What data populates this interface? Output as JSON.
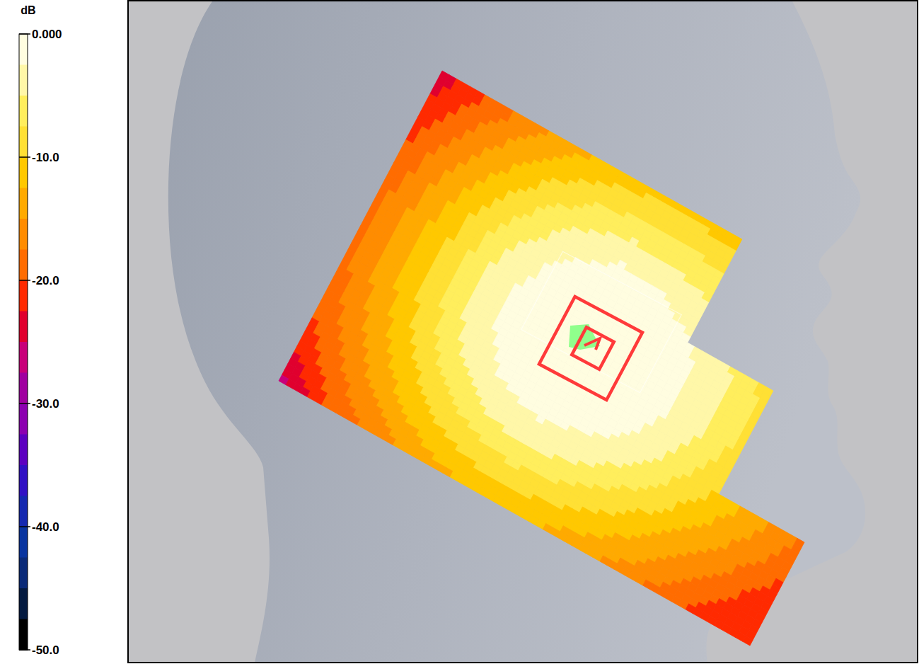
{
  "chart_data": {
    "type": "heatmap",
    "colorbar_title": "dB",
    "colorbar_lim": [
      -50,
      0
    ],
    "colorbar_ticks": [
      {
        "value": 0,
        "label": "0.000"
      },
      {
        "value": -10,
        "label": "-10.0"
      },
      {
        "value": -20,
        "label": "-20.0"
      },
      {
        "value": -30,
        "label": "-30.0"
      },
      {
        "value": -40,
        "label": "-40.0"
      },
      {
        "value": -50,
        "label": "-50.0"
      }
    ],
    "colors": [
      "#fffde0",
      "#fff7a8",
      "#ffee5c",
      "#ffe034",
      "#ffc800",
      "#ffaa00",
      "#ff8c00",
      "#ff6c00",
      "#ff2a00",
      "#e0002e",
      "#c8007a",
      "#a000a0",
      "#8c00b0",
      "#5c00c0",
      "#3010c4",
      "#1428b0",
      "#0834a0",
      "#0a2a78",
      "#041a40",
      "#000000"
    ],
    "tick_labels": false,
    "xlim": [
      0,
      165
    ],
    "ylim": [
      0,
      135
    ],
    "x": [
      0,
      15,
      30,
      45,
      60,
      75,
      90,
      105,
      120,
      135,
      150,
      165
    ],
    "y": [
      0,
      15,
      30,
      45,
      60,
      75,
      90,
      105,
      120,
      135
    ],
    "cells": [
      [
        -24.3,
        -20.4,
        -16.8,
        -13.9,
        -11.8,
        -10.8,
        -10.7,
        -11.5,
        null,
        null,
        null,
        null
      ],
      [
        -22.1,
        -17.8,
        -13.9,
        -10.4,
        -7.9,
        -6.7,
        -6.7,
        -7.8,
        null,
        null,
        null,
        null
      ],
      [
        -20.3,
        -15.7,
        -11.3,
        -7.4,
        -4.2,
        -2.6,
        -2.8,
        -4.4,
        null,
        null,
        null,
        null
      ],
      [
        -19.0,
        -14.2,
        -9.4,
        -4.9,
        -1.7,
        -0.9,
        -1.1,
        -2.1,
        -4.9,
        -8.6,
        null,
        null
      ],
      [
        -18.3,
        -13.3,
        -8.4,
        -3.4,
        -0.9,
        0,
        -0.4,
        -1.4,
        -4.0,
        -8.0,
        null,
        null
      ],
      [
        -18.3,
        -13.3,
        -8.3,
        -3.4,
        -0.9,
        -0.1,
        -0.5,
        -1.7,
        -4.6,
        -8.6,
        null,
        null
      ],
      [
        -18.9,
        -14.1,
        -9.4,
        -4.9,
        -1.9,
        -1.1,
        -1.5,
        -3.1,
        -6.5,
        -10.2,
        -14.0,
        -17.9
      ],
      [
        -20.1,
        -15.6,
        -11.3,
        -7.6,
        -4.7,
        -3.4,
        -4.3,
        -6.5,
        -9.3,
        -12.6,
        -16.1,
        -19.8
      ],
      [
        -22.0,
        -17.8,
        -14.0,
        -10.8,
        -8.6,
        -7.7,
        -8.5,
        -10.2,
        -12.6,
        -15.6,
        -18.8,
        -22.2
      ],
      [
        -26.5,
        -20.5,
        -17.2,
        -14.5,
        -12.7,
        -12.0,
        -12.6,
        -14.2,
        -16.3,
        -18.9,
        -21.8,
        -22.0
      ]
    ]
  }
}
